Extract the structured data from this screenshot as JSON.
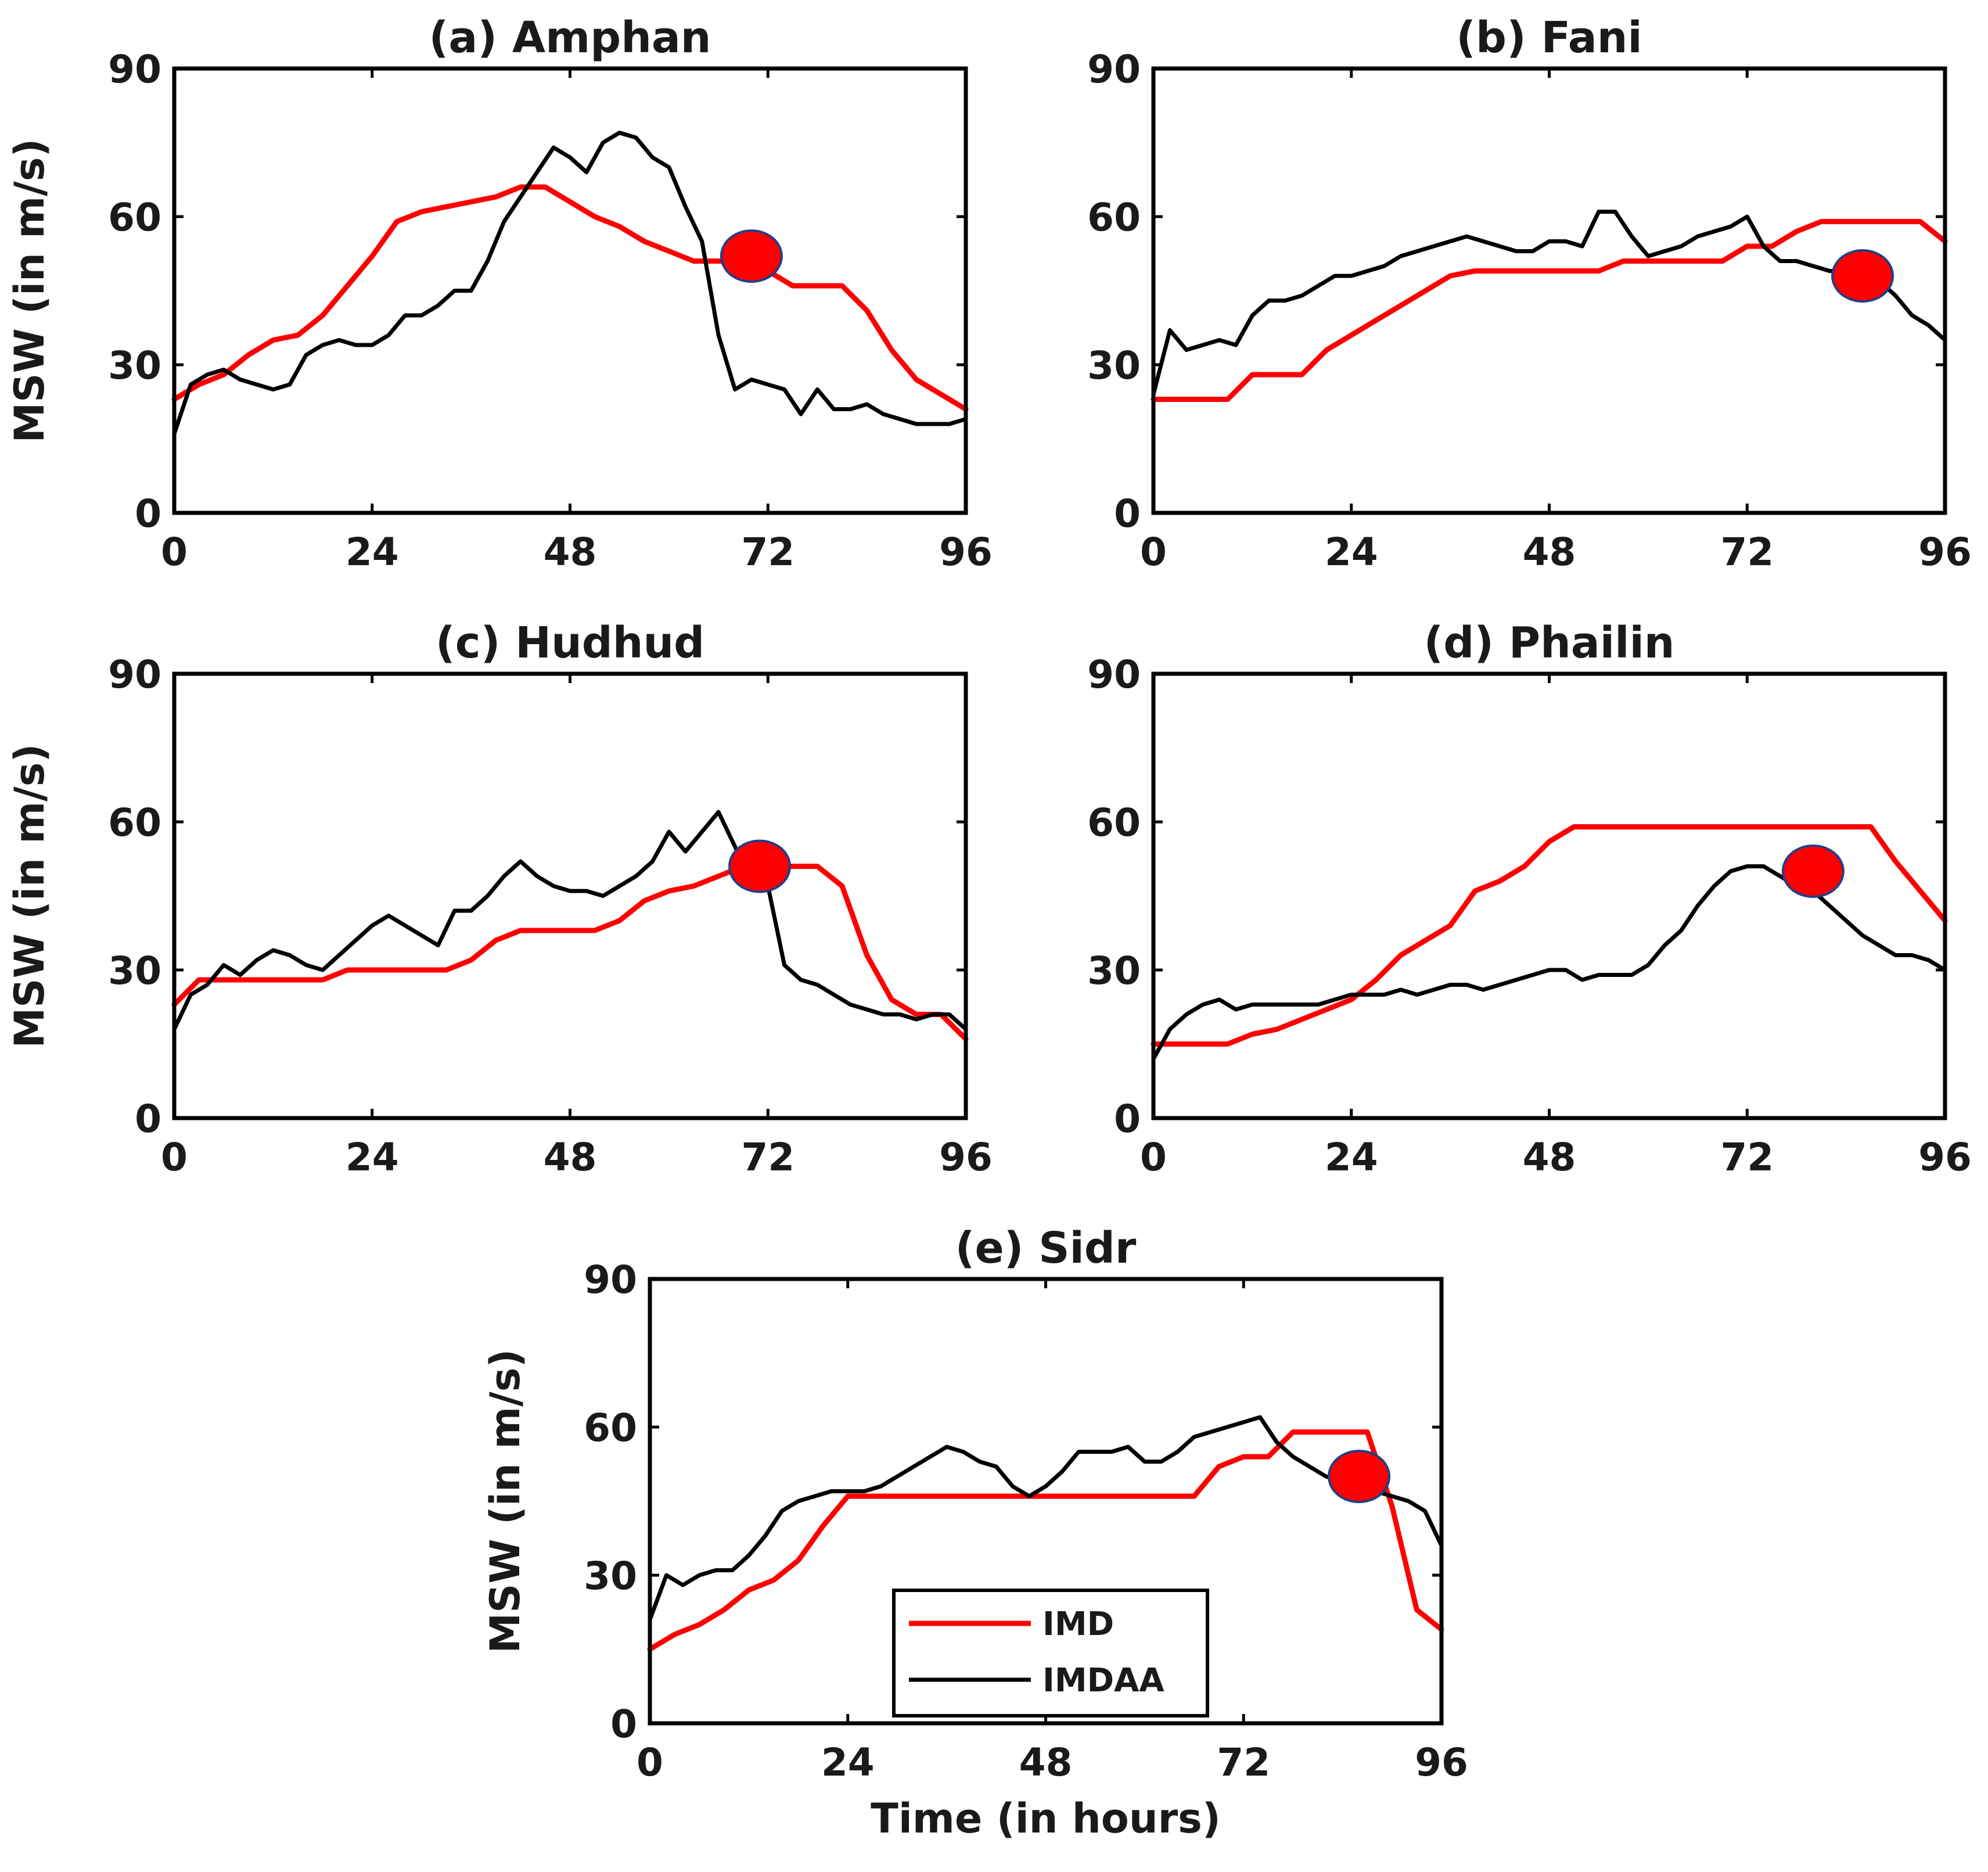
{
  "colors": {
    "imd": "#ff0000",
    "imdaa": "#000000",
    "marker": "#ff0000"
  },
  "chart_data": [
    {
      "type": "line",
      "title": "(a) Amphan",
      "ylabel": "MSW (in m/s)",
      "xlabel": "",
      "xlim": [
        0,
        96
      ],
      "ylim": [
        0,
        90
      ],
      "xticks": [
        0,
        24,
        48,
        72,
        96
      ],
      "yticks": [
        0,
        30,
        60,
        90
      ],
      "series": [
        {
          "name": "IMD",
          "x": [
            0,
            3,
            6,
            9,
            12,
            15,
            18,
            21,
            24,
            27,
            30,
            33,
            36,
            39,
            42,
            45,
            48,
            51,
            54,
            57,
            60,
            63,
            66,
            69,
            72,
            75,
            78,
            81,
            84,
            87,
            90,
            93,
            96
          ],
          "y": [
            23,
            26,
            28,
            32,
            35,
            36,
            40,
            46,
            52,
            59,
            61,
            62,
            63,
            64,
            66,
            66,
            63,
            60,
            58,
            55,
            53,
            51,
            51,
            51,
            49,
            46,
            46,
            46,
            41,
            33,
            27,
            24,
            21
          ]
        },
        {
          "name": "IMDAA",
          "x": [
            0,
            2,
            4,
            6,
            8,
            10,
            12,
            14,
            16,
            18,
            20,
            22,
            24,
            26,
            28,
            30,
            32,
            34,
            36,
            38,
            40,
            42,
            44,
            46,
            48,
            50,
            52,
            54,
            56,
            58,
            60,
            62,
            64,
            66,
            68,
            70,
            72,
            74,
            76,
            78,
            80,
            82,
            84,
            86,
            88,
            90,
            92,
            94,
            96
          ],
          "y": [
            16,
            26,
            28,
            29,
            27,
            26,
            25,
            26,
            32,
            34,
            35,
            34,
            34,
            36,
            40,
            40,
            42,
            45,
            45,
            51,
            59,
            64,
            69,
            74,
            72,
            69,
            75,
            77,
            76,
            72,
            70,
            62,
            55,
            36,
            25,
            27,
            26,
            25,
            20,
            25,
            21,
            21,
            22,
            20,
            19,
            18,
            18,
            18,
            19
          ]
        }
      ],
      "marker": {
        "x": 70,
        "y": 52
      }
    },
    {
      "type": "line",
      "title": "(b) Fani",
      "ylabel": "",
      "xlabel": "",
      "xlim": [
        0,
        96
      ],
      "ylim": [
        0,
        90
      ],
      "xticks": [
        0,
        24,
        48,
        72,
        96
      ],
      "yticks": [
        0,
        30,
        60,
        90
      ],
      "series": [
        {
          "name": "IMD",
          "x": [
            0,
            3,
            6,
            9,
            12,
            15,
            18,
            21,
            24,
            27,
            30,
            33,
            36,
            39,
            42,
            45,
            48,
            51,
            54,
            57,
            60,
            63,
            66,
            69,
            72,
            75,
            78,
            81,
            84,
            87,
            90,
            93,
            96
          ],
          "y": [
            23,
            23,
            23,
            23,
            28,
            28,
            28,
            33,
            36,
            39,
            42,
            45,
            48,
            49,
            49,
            49,
            49,
            49,
            49,
            51,
            51,
            51,
            51,
            51,
            54,
            54,
            57,
            59,
            59,
            59,
            59,
            59,
            55
          ]
        },
        {
          "name": "IMDAA",
          "x": [
            0,
            2,
            4,
            6,
            8,
            10,
            12,
            14,
            16,
            18,
            20,
            22,
            24,
            26,
            28,
            30,
            32,
            34,
            36,
            38,
            40,
            42,
            44,
            46,
            48,
            50,
            52,
            54,
            56,
            58,
            60,
            62,
            64,
            66,
            68,
            70,
            72,
            74,
            76,
            78,
            80,
            82,
            84,
            86,
            88,
            90,
            92,
            94,
            96
          ],
          "y": [
            24,
            37,
            33,
            34,
            35,
            34,
            40,
            43,
            43,
            44,
            46,
            48,
            48,
            49,
            50,
            52,
            53,
            54,
            55,
            56,
            55,
            54,
            53,
            53,
            55,
            55,
            54,
            61,
            61,
            56,
            52,
            53,
            54,
            56,
            57,
            58,
            60,
            54,
            51,
            51,
            50,
            49,
            49,
            48,
            47,
            44,
            40,
            38,
            35
          ]
        }
      ],
      "marker": {
        "x": 86,
        "y": 48
      }
    },
    {
      "type": "line",
      "title": "(c) Hudhud",
      "ylabel": "MSW (in m/s)",
      "xlabel": "",
      "xlim": [
        0,
        96
      ],
      "ylim": [
        0,
        90
      ],
      "xticks": [
        0,
        24,
        48,
        72,
        96
      ],
      "yticks": [
        0,
        30,
        60,
        90
      ],
      "series": [
        {
          "name": "IMD",
          "x": [
            0,
            3,
            6,
            9,
            12,
            15,
            18,
            21,
            24,
            27,
            30,
            33,
            36,
            39,
            42,
            45,
            48,
            51,
            54,
            57,
            60,
            63,
            66,
            69,
            72,
            75,
            78,
            81,
            84,
            87,
            90,
            93,
            96
          ],
          "y": [
            23,
            28,
            28,
            28,
            28,
            28,
            28,
            30,
            30,
            30,
            30,
            30,
            32,
            36,
            38,
            38,
            38,
            38,
            40,
            44,
            46,
            47,
            49,
            51,
            51,
            51,
            51,
            47,
            33,
            24,
            21,
            21,
            16
          ]
        },
        {
          "name": "IMDAA",
          "x": [
            0,
            2,
            4,
            6,
            8,
            10,
            12,
            14,
            16,
            18,
            20,
            22,
            24,
            26,
            28,
            30,
            32,
            34,
            36,
            38,
            40,
            42,
            44,
            46,
            48,
            50,
            52,
            54,
            56,
            58,
            60,
            62,
            64,
            66,
            68,
            70,
            72,
            74,
            76,
            78,
            80,
            82,
            84,
            86,
            88,
            90,
            92,
            94,
            96
          ],
          "y": [
            18,
            25,
            27,
            31,
            29,
            32,
            34,
            33,
            31,
            30,
            33,
            36,
            39,
            41,
            39,
            37,
            35,
            42,
            42,
            45,
            49,
            52,
            49,
            47,
            46,
            46,
            45,
            47,
            49,
            52,
            58,
            54,
            58,
            62,
            55,
            48,
            47,
            31,
            28,
            27,
            25,
            23,
            22,
            21,
            21,
            20,
            21,
            21,
            18
          ]
        }
      ],
      "marker": {
        "x": 71,
        "y": 51
      }
    },
    {
      "type": "line",
      "title": "(d) Phailin",
      "ylabel": "",
      "xlabel": "",
      "xlim": [
        0,
        96
      ],
      "ylim": [
        0,
        90
      ],
      "xticks": [
        0,
        24,
        48,
        72,
        96
      ],
      "yticks": [
        0,
        30,
        60,
        90
      ],
      "series": [
        {
          "name": "IMD",
          "x": [
            0,
            3,
            6,
            9,
            12,
            15,
            18,
            21,
            24,
            27,
            30,
            33,
            36,
            39,
            42,
            45,
            48,
            51,
            54,
            57,
            60,
            63,
            66,
            69,
            72,
            75,
            78,
            81,
            84,
            87,
            90,
            93,
            96
          ],
          "y": [
            15,
            15,
            15,
            15,
            17,
            18,
            20,
            22,
            24,
            28,
            33,
            36,
            39,
            46,
            48,
            51,
            56,
            59,
            59,
            59,
            59,
            59,
            59,
            59,
            59,
            59,
            59,
            59,
            59,
            59,
            52,
            46,
            40
          ]
        },
        {
          "name": "IMDAA",
          "x": [
            0,
            2,
            4,
            6,
            8,
            10,
            12,
            14,
            16,
            18,
            20,
            22,
            24,
            26,
            28,
            30,
            32,
            34,
            36,
            38,
            40,
            42,
            44,
            46,
            48,
            50,
            52,
            54,
            56,
            58,
            60,
            62,
            64,
            66,
            68,
            70,
            72,
            74,
            76,
            78,
            80,
            82,
            84,
            86,
            88,
            90,
            92,
            94,
            96
          ],
          "y": [
            12,
            18,
            21,
            23,
            24,
            22,
            23,
            23,
            23,
            23,
            23,
            24,
            25,
            25,
            25,
            26,
            25,
            26,
            27,
            27,
            26,
            27,
            28,
            29,
            30,
            30,
            28,
            29,
            29,
            29,
            31,
            35,
            38,
            43,
            47,
            50,
            51,
            51,
            49,
            47,
            46,
            43,
            40,
            37,
            35,
            33,
            33,
            32,
            30
          ]
        }
      ],
      "marker": {
        "x": 80,
        "y": 50
      }
    },
    {
      "type": "line",
      "title": "(e) Sidr",
      "ylabel": "MSW (in m/s)",
      "xlabel": "Time (in hours)",
      "xlim": [
        0,
        96
      ],
      "ylim": [
        0,
        90
      ],
      "xticks": [
        0,
        24,
        48,
        72,
        96
      ],
      "yticks": [
        0,
        30,
        60,
        90
      ],
      "series": [
        {
          "name": "IMD",
          "x": [
            0,
            3,
            6,
            9,
            12,
            15,
            18,
            21,
            24,
            27,
            30,
            33,
            36,
            39,
            42,
            45,
            48,
            51,
            54,
            57,
            60,
            63,
            66,
            69,
            72,
            75,
            78,
            81,
            84,
            87,
            90,
            93,
            96
          ],
          "y": [
            15,
            18,
            20,
            23,
            27,
            29,
            33,
            40,
            46,
            46,
            46,
            46,
            46,
            46,
            46,
            46,
            46,
            46,
            46,
            46,
            46,
            46,
            46,
            52,
            54,
            54,
            59,
            59,
            59,
            59,
            44,
            23,
            19
          ]
        },
        {
          "name": "IMDAA",
          "x": [
            0,
            2,
            4,
            6,
            8,
            10,
            12,
            14,
            16,
            18,
            20,
            22,
            24,
            26,
            28,
            30,
            32,
            34,
            36,
            38,
            40,
            42,
            44,
            46,
            48,
            50,
            52,
            54,
            56,
            58,
            60,
            62,
            64,
            66,
            68,
            70,
            72,
            74,
            76,
            78,
            80,
            82,
            84,
            86,
            88,
            90,
            92,
            94,
            96
          ],
          "y": [
            21,
            30,
            28,
            30,
            31,
            31,
            34,
            38,
            43,
            45,
            46,
            47,
            47,
            47,
            48,
            50,
            52,
            54,
            56,
            55,
            53,
            52,
            48,
            46,
            48,
            51,
            55,
            55,
            55,
            56,
            53,
            53,
            55,
            58,
            59,
            60,
            61,
            62,
            57,
            54,
            52,
            50,
            49,
            48,
            47,
            46,
            45,
            43,
            36
          ]
        }
      ],
      "marker": {
        "x": 86,
        "y": 50
      }
    }
  ],
  "legend": {
    "imd_label": "IMD",
    "imdaa_label": "IMDAA"
  }
}
